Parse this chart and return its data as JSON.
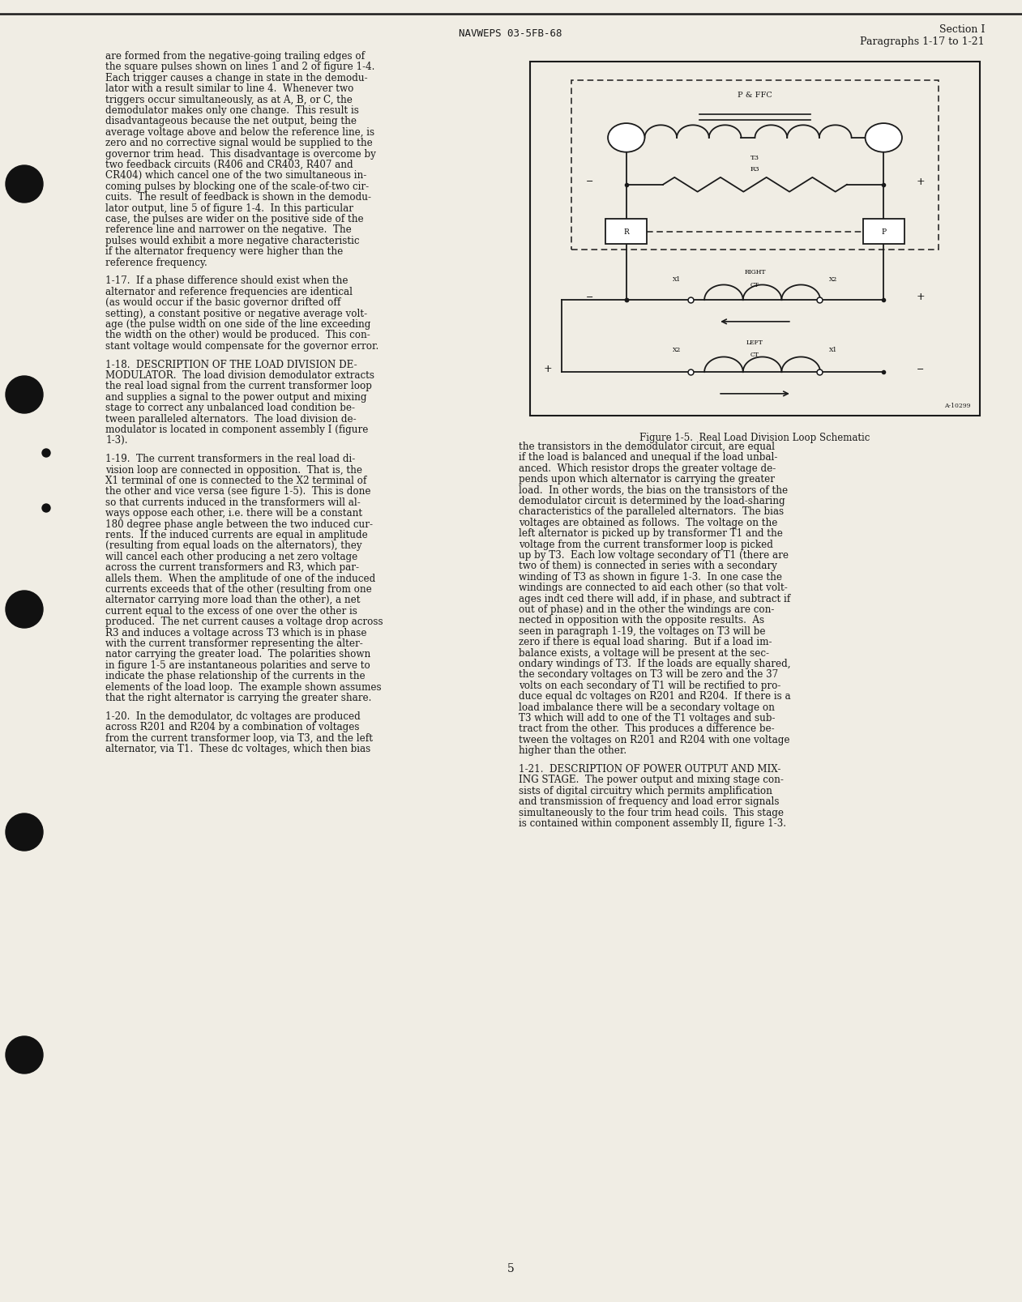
{
  "page_bg": "#f0ede4",
  "text_color": "#1a1a1a",
  "header_center": "NAVWEPS 03-5FB-68",
  "header_right_line1": "Section I",
  "header_right_line2": "Paragraphs 1-17 to 1-21",
  "page_number": "5",
  "figure_caption": "Figure 1-5.  Real Load Division Loop Schematic",
  "figure_id": "A-10299",
  "col1_text": [
    "are formed from the negative-going trailing edges of",
    "the square pulses shown on lines 1 and 2 of figure 1-4.",
    "Each trigger causes a change in state in the demodu-",
    "lator with a result similar to line 4.  Whenever two",
    "triggers occur simultaneously, as at A, B, or C, the",
    "demodulator makes only one change.  This result is",
    "disadvantageous because the net output, being the",
    "average voltage above and below the reference line, is",
    "zero and no corrective signal would be supplied to the",
    "governor trim head.  This disadvantage is overcome by",
    "two feedback circuits (R406 and CR403, R407 and",
    "CR404) which cancel one of the two simultaneous in-",
    "coming pulses by blocking one of the scale-of-two cir-",
    "cuits.  The result of feedback is shown in the demodu-",
    "lator output, line 5 of figure 1-4.  In this particular",
    "case, the pulses are wider on the positive side of the",
    "reference line and narrower on the negative.  The",
    "pulses would exhibit a more negative characteristic",
    "if the alternator frequency were higher than the",
    "reference frequency."
  ],
  "col1_para2": [
    "1-17.  If a phase difference should exist when the",
    "alternator and reference frequencies are identical",
    "(as would occur if the basic governor drifted off",
    "setting), a constant positive or negative average volt-",
    "age (the pulse width on one side of the line exceeding",
    "the width on the other) would be produced.  This con-",
    "stant voltage would compensate for the governor error."
  ],
  "col1_para3": [
    "1-18.  DESCRIPTION OF THE LOAD DIVISION DE-",
    "MODULATOR.  The load division demodulator extracts",
    "the real load signal from the current transformer loop",
    "and supplies a signal to the power output and mixing",
    "stage to correct any unbalanced load condition be-",
    "tween paralleled alternators.  The load division de-",
    "modulator is located in component assembly I (figure",
    "1-3)."
  ],
  "col1_para4": [
    "1-19.  The current transformers in the real load di-",
    "vision loop are connected in opposition.  That is, the",
    "X1 terminal of one is connected to the X2 terminal of",
    "the other and vice versa (see figure 1-5).  This is done",
    "so that currents induced in the transformers will al-",
    "ways oppose each other, i.e. there will be a constant",
    "180 degree phase angle between the two induced cur-",
    "rents.  If the induced currents are equal in amplitude",
    "(resulting from equal loads on the alternators), they",
    "will cancel each other producing a net zero voltage",
    "across the current transformers and R3, which par-",
    "allels them.  When the amplitude of one of the induced",
    "currents exceeds that of the other (resulting from one",
    "alternator carrying more load than the other), a net",
    "current equal to the excess of one over the other is",
    "produced.  The net current causes a voltage drop across",
    "R3 and induces a voltage across T3 which is in phase",
    "with the current transformer representing the alter-",
    "nator carrying the greater load.  The polarities shown",
    "in figure 1-5 are instantaneous polarities and serve to",
    "indicate the phase relationship of the currents in the",
    "elements of the load loop.  The example shown assumes",
    "that the right alternator is carrying the greater share."
  ],
  "col1_para5": [
    "1-20.  In the demodulator, dc voltages are produced",
    "across R201 and R204 by a combination of voltages",
    "from the current transformer loop, via T3, and the left",
    "alternator, via T1.  These dc voltages, which then bias"
  ],
  "col2_para1": [
    "the transistors in the demodulator circuit, are equal",
    "if the load is balanced and unequal if the load unbal-",
    "anced.  Which resistor drops the greater voltage de-",
    "pends upon which alternator is carrying the greater",
    "load.  In other words, the bias on the transistors of the",
    "demodulator circuit is determined by the load-sharing",
    "characteristics of the paralleled alternators.  The bias",
    "voltages are obtained as follows.  The voltage on the",
    "left alternator is picked up by transformer T1 and the",
    "voltage from the current transformer loop is picked",
    "up by T3.  Each low voltage secondary of T1 (there are",
    "two of them) is connected in series with a secondary",
    "winding of T3 as shown in figure 1-3.  In one case the",
    "windings are connected to aid each other (so that volt-",
    "ages indt ced there will add, if in phase, and subtract if",
    "out of phase) and in the other the windings are con-",
    "nected in opposition with the opposite results.  As",
    "seen in paragraph 1-19, the voltages on T3 will be",
    "zero if there is equal load sharing.  But if a load im-",
    "balance exists, a voltage will be present at the sec-",
    "ondary windings of T3.  If the loads are equally shared,",
    "the secondary voltages on T3 will be zero and the 37",
    "volts on each secondary of T1 will be rectified to pro-",
    "duce equal dc voltages on R201 and R204.  If there is a",
    "load imbalance there will be a secondary voltage on",
    "T3 which will add to one of the T1 voltages and sub-",
    "tract from the other.  This produces a difference be-",
    "tween the voltages on R201 and R204 with one voltage",
    "higher than the other."
  ],
  "col2_para2": [
    "1-21.  DESCRIPTION OF POWER OUTPUT AND MIX-",
    "ING STAGE.  The power output and mixing stage con-",
    "sists of digital circuitry which permits amplification",
    "and transmission of frequency and load error signals",
    "simultaneously to the four trim head coils.  This stage",
    "is contained within component assembly II, figure 1-3."
  ]
}
